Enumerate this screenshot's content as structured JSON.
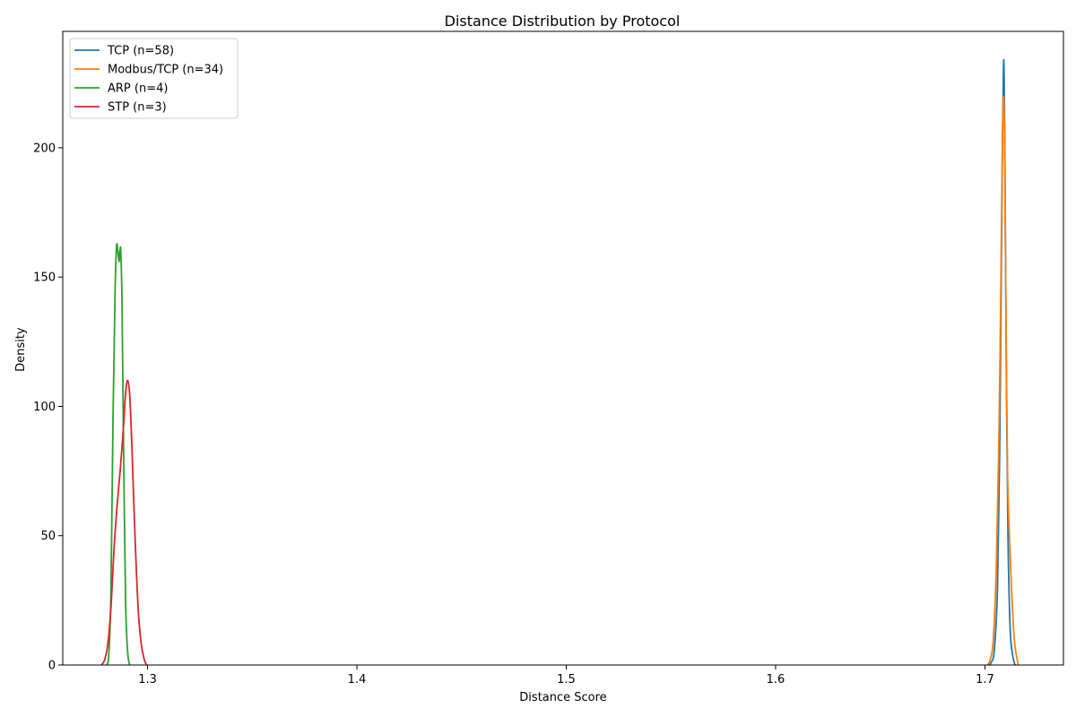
{
  "chart_data": {
    "type": "line",
    "title": "Distance Distribution by Protocol",
    "xlabel": "Distance Score",
    "ylabel": "Density",
    "xlim": [
      1.2595,
      1.7375
    ],
    "ylim": [
      0,
      245
    ],
    "xticks": [
      1.3,
      1.4,
      1.5,
      1.6,
      1.7
    ],
    "xtick_labels": [
      "1.3",
      "1.4",
      "1.5",
      "1.6",
      "1.7"
    ],
    "yticks": [
      0,
      50,
      100,
      150,
      200
    ],
    "ytick_labels": [
      "0",
      "50",
      "100",
      "150",
      "200"
    ],
    "grid": false,
    "legend_position": "top-left",
    "series": [
      {
        "name": "TCP (n=58)",
        "color": "#1f77b4",
        "x": [
          1.7015,
          1.703,
          1.7045,
          1.706,
          1.707,
          1.7078,
          1.7084,
          1.7088,
          1.709,
          1.7092,
          1.7096,
          1.7102,
          1.711,
          1.712,
          1.713,
          1.714,
          1.7145
        ],
        "y": [
          0,
          1,
          6,
          30,
          80,
          150,
          205,
          228,
          234,
          226,
          190,
          115,
          50,
          15,
          5,
          1,
          0
        ]
      },
      {
        "name": "Modbus/TCP (n=34)",
        "color": "#ff7f0e",
        "x": [
          1.701,
          1.7025,
          1.704,
          1.7055,
          1.7068,
          1.7077,
          1.7083,
          1.7087,
          1.709,
          1.7094,
          1.71,
          1.7108,
          1.7118,
          1.7128,
          1.714,
          1.7152,
          1.716
        ],
        "y": [
          0,
          2,
          10,
          40,
          95,
          155,
          200,
          215,
          219,
          200,
          140,
          75,
          48,
          28,
          10,
          3,
          0
        ]
      },
      {
        "name": "ARP (n=4)",
        "color": "#2ca02c",
        "x": [
          1.2805,
          1.2815,
          1.2825,
          1.2835,
          1.2845,
          1.2852,
          1.2858,
          1.2864,
          1.2868,
          1.2872,
          1.2878,
          1.2886,
          1.2895,
          1.2905,
          1.2915
        ],
        "y": [
          0,
          4,
          28,
          95,
          145,
          162,
          160,
          156,
          160,
          160,
          140,
          80,
          25,
          5,
          0
        ]
      },
      {
        "name": "STP (n=3)",
        "color": "#d62728",
        "x": [
          1.278,
          1.2795,
          1.281,
          1.2825,
          1.284,
          1.2855,
          1.287,
          1.2885,
          1.2895,
          1.2905,
          1.2915,
          1.2925,
          1.294,
          1.2955,
          1.297,
          1.2985,
          1.2995
        ],
        "y": [
          0,
          2,
          8,
          22,
          45,
          62,
          76,
          92,
          105,
          110,
          104,
          85,
          50,
          22,
          8,
          2,
          0
        ]
      }
    ]
  }
}
